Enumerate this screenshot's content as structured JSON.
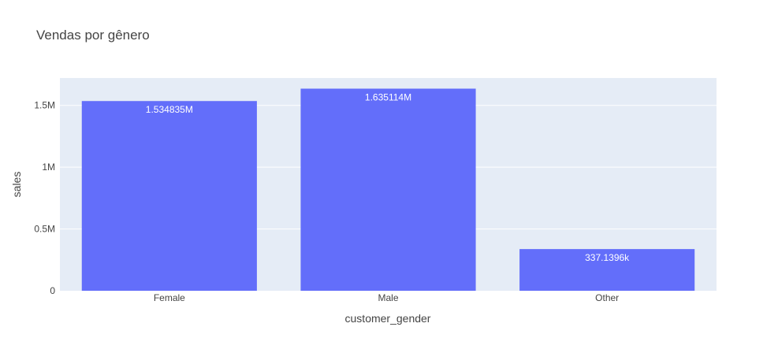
{
  "chart_data": {
    "type": "bar",
    "title": "Vendas por gênero",
    "xlabel": "customer_gender",
    "ylabel": "sales",
    "categories": [
      "Female",
      "Male",
      "Other"
    ],
    "values": [
      1534835,
      1635114,
      337139.6
    ],
    "value_labels": [
      "1.534835M",
      "1.635114M",
      "337.1396k"
    ],
    "ylim": [
      0,
      1721173
    ],
    "yticks": [
      0,
      500000,
      1000000,
      1500000
    ],
    "ytick_labels": [
      "0",
      "0.5M",
      "1M",
      "1.5M"
    ],
    "grid": true,
    "legend": "none",
    "colors": {
      "bar": "#636efa",
      "plot_bg": "#e5ecf6",
      "grid": "#ffffff",
      "text": "#444444"
    }
  }
}
